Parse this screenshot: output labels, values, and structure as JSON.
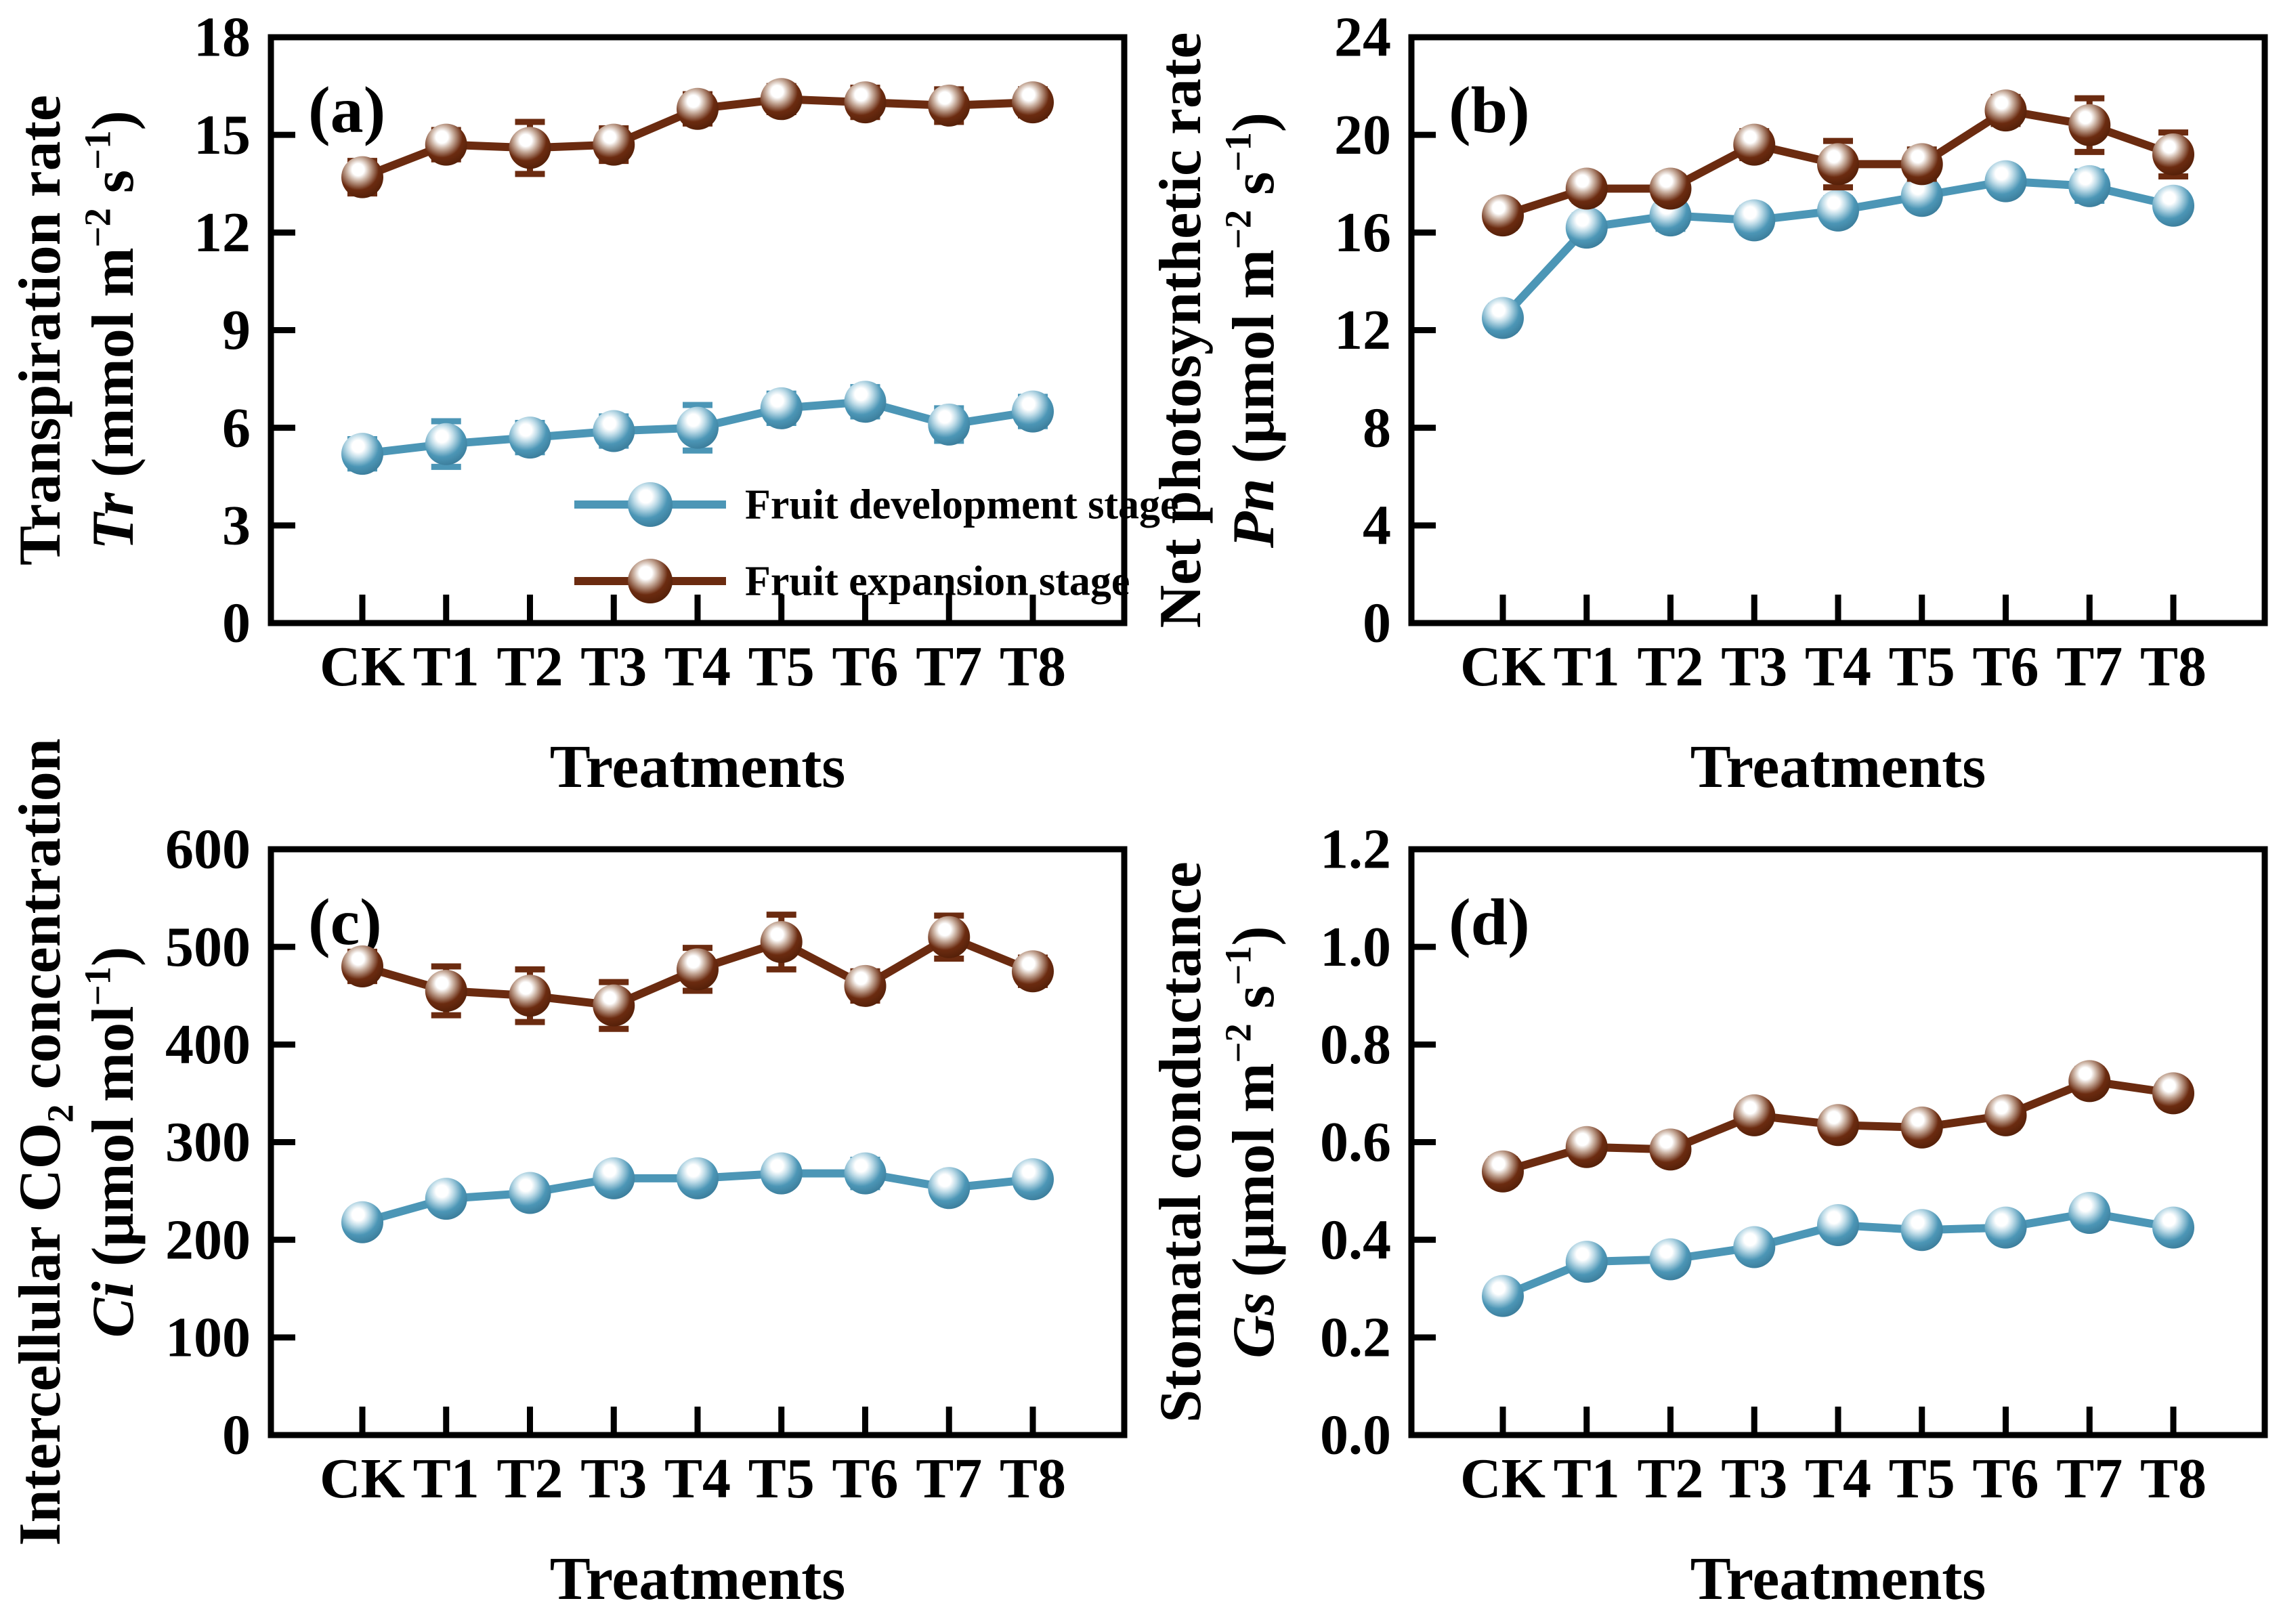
{
  "figure": {
    "x_axis_title": "Treatments",
    "categories": [
      "CK",
      "T1",
      "T2",
      "T3",
      "T4",
      "T5",
      "T6",
      "T7",
      "T8"
    ],
    "legend": {
      "location": "panel-a-lower-right",
      "items": [
        {
          "label": "Fruit development stage",
          "series": "development"
        },
        {
          "label": "Fruit expansion stage",
          "series": "expansion"
        }
      ]
    },
    "colors": {
      "development": "#4C96B6",
      "development_edge": "#3A7B99",
      "development_light": "#BFDCE8",
      "expansion": "#6B2B10",
      "expansion_edge": "#521F08",
      "expansion_light": "#C9AF9F",
      "axis": "#000000",
      "background": "#FFFFFF"
    }
  },
  "chart_data": [
    {
      "type": "line",
      "panel_label": "(a)",
      "xlabel": "Treatments",
      "ylabel_line1": "Transpiration rate",
      "ylabel_line2": "*Tr* (mmol m{^−2} s{^−1})",
      "ylim": [
        0,
        18
      ],
      "yticks": [
        0,
        3,
        6,
        9,
        12,
        15,
        18
      ],
      "ytick_labels": [
        "0",
        "3",
        "6",
        "9",
        "12",
        "15",
        "18"
      ],
      "grid": false,
      "show_legend": true,
      "categories": [
        "CK",
        "T1",
        "T2",
        "T3",
        "T4",
        "T5",
        "T6",
        "T7",
        "T8"
      ],
      "series": [
        {
          "name": "Fruit development stage",
          "key": "development",
          "values": [
            5.2,
            5.5,
            5.7,
            5.9,
            6.0,
            6.6,
            6.8,
            6.1,
            6.5
          ],
          "errors": [
            0.45,
            0.7,
            0.45,
            0.45,
            0.7,
            0.45,
            0.45,
            0.5,
            0.45
          ]
        },
        {
          "name": "Fruit expansion stage",
          "key": "expansion",
          "values": [
            13.7,
            14.7,
            14.6,
            14.7,
            15.8,
            16.1,
            16.0,
            15.9,
            16.0
          ],
          "errors": [
            0.5,
            0.45,
            0.8,
            0.5,
            0.45,
            0.4,
            0.45,
            0.5,
            0.4
          ]
        }
      ]
    },
    {
      "type": "line",
      "panel_label": "(b)",
      "xlabel": "Treatments",
      "ylabel_line1": "Net photosynthetic rate",
      "ylabel_line2": "*Pn* (μmol m{^−2} s{^−1})",
      "ylim": [
        0,
        24
      ],
      "yticks": [
        0,
        4,
        8,
        12,
        16,
        20,
        24
      ],
      "ytick_labels": [
        "0",
        "4",
        "8",
        "12",
        "16",
        "20",
        "24"
      ],
      "grid": false,
      "show_legend": false,
      "categories": [
        "CK",
        "T1",
        "T2",
        "T3",
        "T4",
        "T5",
        "T6",
        "T7",
        "T8"
      ],
      "series": [
        {
          "name": "Fruit development stage",
          "key": "development",
          "values": [
            12.5,
            16.2,
            16.7,
            16.5,
            16.9,
            17.5,
            18.1,
            17.9,
            17.1
          ],
          "errors": [
            0.5,
            0.5,
            0.55,
            0.5,
            0.5,
            0.5,
            0.45,
            0.6,
            0.5
          ]
        },
        {
          "name": "Fruit expansion stage",
          "key": "expansion",
          "values": [
            16.7,
            17.8,
            17.8,
            19.6,
            18.8,
            18.8,
            21.0,
            20.4,
            19.2
          ],
          "errors": [
            0.5,
            0.5,
            0.5,
            0.55,
            0.95,
            0.6,
            0.55,
            1.1,
            0.9
          ]
        }
      ]
    },
    {
      "type": "line",
      "panel_label": "(c)",
      "xlabel": "Treatments",
      "ylabel_line1": "Intercellular CO{_2} concentration",
      "ylabel_line2": "*Ci* (μmol mol{^−1})",
      "ylim": [
        0,
        600
      ],
      "yticks": [
        0,
        100,
        200,
        300,
        400,
        500,
        600
      ],
      "ytick_labels": [
        "0",
        "100",
        "200",
        "300",
        "400",
        "500",
        "600"
      ],
      "grid": false,
      "show_legend": false,
      "categories": [
        "CK",
        "T1",
        "T2",
        "T3",
        "T4",
        "T5",
        "T6",
        "T7",
        "T8"
      ],
      "series": [
        {
          "name": "Fruit development stage",
          "key": "development",
          "values": [
            218,
            242,
            248,
            263,
            263,
            268,
            268,
            253,
            262
          ],
          "errors": [
            12,
            12,
            12,
            12,
            12,
            12,
            14,
            12,
            12
          ]
        },
        {
          "name": "Fruit expansion stage",
          "key": "expansion",
          "values": [
            480,
            455,
            450,
            440,
            477,
            505,
            460,
            510,
            475
          ],
          "errors": [
            15,
            25,
            27,
            24,
            22,
            28,
            15,
            22,
            14
          ]
        }
      ]
    },
    {
      "type": "line",
      "panel_label": "(d)",
      "xlabel": "Treatments",
      "ylabel_line1": "Stomatal conductance",
      "ylabel_line2": "*Gs* (μmol m{^−2} s{^−1})",
      "ylim": [
        0,
        1.2
      ],
      "yticks": [
        0,
        0.2,
        0.4,
        0.6,
        0.8,
        1.0,
        1.2
      ],
      "ytick_labels": [
        "0.0",
        "0.2",
        "0.4",
        "0.6",
        "0.8",
        "1.0",
        "1.2"
      ],
      "grid": false,
      "show_legend": false,
      "categories": [
        "CK",
        "T1",
        "T2",
        "T3",
        "T4",
        "T5",
        "T6",
        "T7",
        "T8"
      ],
      "series": [
        {
          "name": "Fruit development stage",
          "key": "development",
          "values": [
            0.285,
            0.355,
            0.36,
            0.385,
            0.43,
            0.42,
            0.425,
            0.455,
            0.425
          ],
          "errors": [
            0.02,
            0.02,
            0.02,
            0.02,
            0.02,
            0.02,
            0.02,
            0.02,
            0.02
          ]
        },
        {
          "name": "Fruit expansion stage",
          "key": "expansion",
          "values": [
            0.54,
            0.59,
            0.585,
            0.655,
            0.635,
            0.63,
            0.655,
            0.725,
            0.7
          ],
          "errors": [
            0.025,
            0.025,
            0.025,
            0.025,
            0.02,
            0.02,
            0.025,
            0.025,
            0.025
          ]
        }
      ]
    }
  ]
}
